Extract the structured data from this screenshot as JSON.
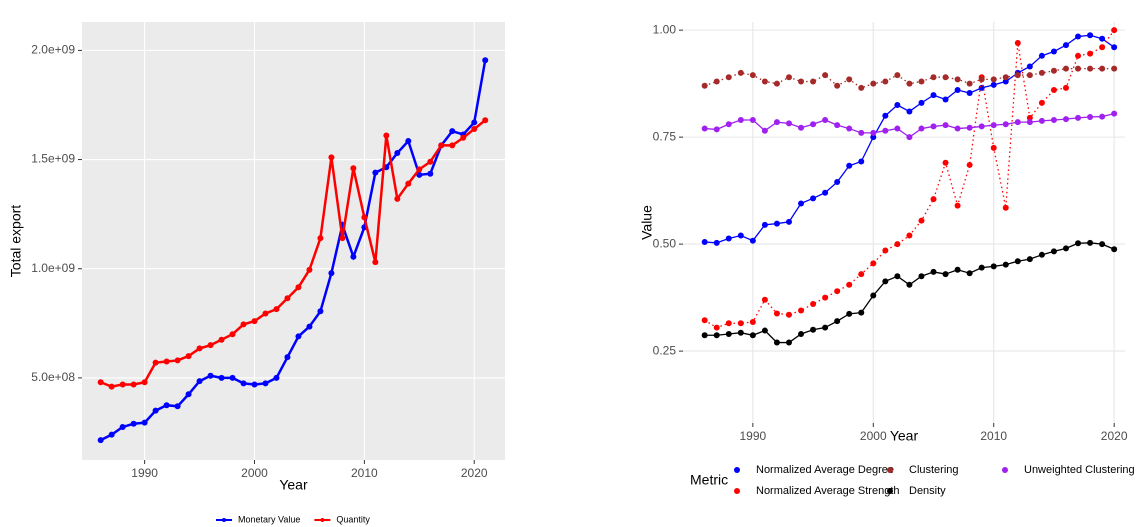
{
  "chart_data": [
    {
      "type": "line",
      "x_label": "Year",
      "y_label": "Total export",
      "background": "#ebebeb",
      "grid": true,
      "xlim": [
        1984.3,
        2022.8
      ],
      "xticks": [
        1990,
        2000,
        2010,
        2020
      ],
      "ylim": [
        124000000,
        2130000000
      ],
      "yticks": [
        {
          "value": 500000000,
          "label": "5.0e+08"
        },
        {
          "value": 1000000000,
          "label": "1.0e+09"
        },
        {
          "value": 1500000000,
          "label": "1.5e+09"
        },
        {
          "value": 2000000000,
          "label": "2.0e+09"
        }
      ],
      "legend": "bottom",
      "x": [
        1986,
        1987,
        1988,
        1989,
        1990,
        1991,
        1992,
        1993,
        1994,
        1995,
        1996,
        1997,
        1998,
        1999,
        2000,
        2001,
        2002,
        2003,
        2004,
        2005,
        2006,
        2007,
        2008,
        2009,
        2010,
        2011,
        2012,
        2013,
        2014,
        2015,
        2016,
        2017,
        2018,
        2019,
        2020,
        2021
      ],
      "series": [
        {
          "name": "Monetary Value",
          "color": "#0000ff",
          "values": [
            215000000,
            240000000,
            275000000,
            290000000,
            295000000,
            350000000,
            375000000,
            370000000,
            425000000,
            485000000,
            510000000,
            500000000,
            500000000,
            475000000,
            470000000,
            475000000,
            500000000,
            595000000,
            690000000,
            735000000,
            805000000,
            980000000,
            1200000000,
            1055000000,
            1190000000,
            1440000000,
            1465000000,
            1530000000,
            1585000000,
            1430000000,
            1435000000,
            1565000000,
            1630000000,
            1615000000,
            1670000000,
            1955000000
          ]
        },
        {
          "name": "Quantity",
          "color": "#ff0000",
          "values": [
            480000000,
            460000000,
            470000000,
            470000000,
            480000000,
            570000000,
            575000000,
            580000000,
            600000000,
            635000000,
            650000000,
            675000000,
            700000000,
            745000000,
            760000000,
            795000000,
            815000000,
            865000000,
            915000000,
            995000000,
            1140000000,
            1510000000,
            1140000000,
            1460000000,
            1235000000,
            1030000000,
            1610000000,
            1320000000,
            1390000000,
            1455000000,
            1490000000,
            1565000000,
            1565000000,
            1600000000,
            1640000000,
            1680000000
          ]
        }
      ]
    },
    {
      "type": "line",
      "x_label": "Year",
      "y_label": "Value",
      "background": "#ffffff",
      "grid": true,
      "xlim": [
        1984.2,
        2020.9
      ],
      "xticks": [
        1990,
        2000,
        2010,
        2020
      ],
      "ylim": [
        0.082,
        1.019
      ],
      "yticks": [
        0.25,
        {
          "value": 0.5,
          "label": "0.50"
        },
        0.75,
        {
          "value": 1,
          "label": "1.00"
        }
      ],
      "legend": "bottom",
      "legend_title": "Metric",
      "x": [
        1986,
        1987,
        1988,
        1989,
        1990,
        1991,
        1992,
        1993,
        1994,
        1995,
        1996,
        1997,
        1998,
        1999,
        2000,
        2001,
        2002,
        2003,
        2004,
        2005,
        2006,
        2007,
        2008,
        2009,
        2010,
        2011,
        2012,
        2013,
        2014,
        2015,
        2016,
        2017,
        2018,
        2019,
        2020
      ],
      "series": [
        {
          "name": "Normalized Average Degree",
          "color": "#0000ff",
          "dotted": false,
          "values": [
            0.505,
            0.503,
            0.513,
            0.52,
            0.508,
            0.545,
            0.548,
            0.552,
            0.595,
            0.607,
            0.62,
            0.645,
            0.683,
            0.693,
            0.75,
            0.8,
            0.825,
            0.81,
            0.83,
            0.848,
            0.838,
            0.86,
            0.853,
            0.865,
            0.872,
            0.88,
            0.9,
            0.915,
            0.94,
            0.95,
            0.965,
            0.985,
            0.988,
            0.98,
            0.96
          ]
        },
        {
          "name": "Normalized Average Strength",
          "color": "#ff0000",
          "dotted": true,
          "values": [
            0.322,
            0.305,
            0.315,
            0.315,
            0.318,
            0.37,
            0.338,
            0.335,
            0.345,
            0.36,
            0.375,
            0.39,
            0.405,
            0.43,
            0.455,
            0.485,
            0.5,
            0.52,
            0.555,
            0.605,
            0.69,
            0.59,
            0.685,
            0.89,
            0.725,
            0.585,
            0.97,
            0.795,
            0.83,
            0.86,
            0.865,
            0.94,
            0.945,
            0.96,
            1.0
          ]
        },
        {
          "name": "Clustering",
          "color": "#a52a2a",
          "dotted": true,
          "values": [
            0.87,
            0.88,
            0.89,
            0.9,
            0.895,
            0.88,
            0.875,
            0.89,
            0.88,
            0.88,
            0.895,
            0.87,
            0.885,
            0.865,
            0.875,
            0.88,
            0.895,
            0.875,
            0.88,
            0.89,
            0.89,
            0.885,
            0.875,
            0.885,
            0.885,
            0.89,
            0.895,
            0.895,
            0.9,
            0.905,
            0.91,
            0.91,
            0.91,
            0.91,
            0.91
          ]
        },
        {
          "name": "Density",
          "color": "#000000",
          "dotted": false,
          "values": [
            0.287,
            0.287,
            0.29,
            0.293,
            0.287,
            0.298,
            0.27,
            0.27,
            0.29,
            0.3,
            0.305,
            0.32,
            0.337,
            0.34,
            0.38,
            0.413,
            0.425,
            0.405,
            0.425,
            0.435,
            0.43,
            0.44,
            0.432,
            0.445,
            0.448,
            0.452,
            0.46,
            0.465,
            0.475,
            0.483,
            0.49,
            0.502,
            0.503,
            0.5,
            0.488
          ]
        },
        {
          "name": "Unweighted Clustering",
          "color": "#a020f0",
          "dotted": false,
          "values": [
            0.77,
            0.768,
            0.78,
            0.79,
            0.79,
            0.765,
            0.785,
            0.782,
            0.772,
            0.78,
            0.79,
            0.778,
            0.77,
            0.76,
            0.76,
            0.765,
            0.77,
            0.75,
            0.77,
            0.775,
            0.778,
            0.77,
            0.772,
            0.775,
            0.778,
            0.78,
            0.785,
            0.785,
            0.788,
            0.79,
            0.792,
            0.795,
            0.797,
            0.798,
            0.805
          ]
        }
      ]
    }
  ]
}
